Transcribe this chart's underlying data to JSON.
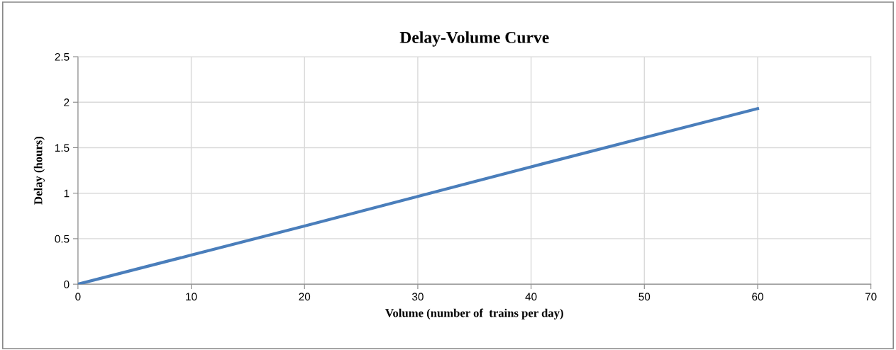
{
  "chart_data": {
    "type": "line",
    "title": "Delay-Volume Curve",
    "xlabel": "Volume (number of  trains per day)",
    "ylabel": "Delay (hours)",
    "x": [
      0,
      10,
      20,
      30,
      40,
      50,
      60
    ],
    "series": [
      {
        "color": "#4a7ebb",
        "values": [
          0,
          0.32,
          0.64,
          0.965,
          1.29,
          1.61,
          1.93
        ]
      }
    ],
    "xlim": [
      0,
      70
    ],
    "xticks": [
      0,
      10,
      20,
      30,
      40,
      50,
      60,
      70
    ],
    "ylim": [
      0,
      2.5
    ],
    "yticks": [
      0,
      0.5,
      1,
      1.5,
      2,
      2.5
    ],
    "grid": true,
    "marker": "none",
    "line_style": "solid"
  }
}
